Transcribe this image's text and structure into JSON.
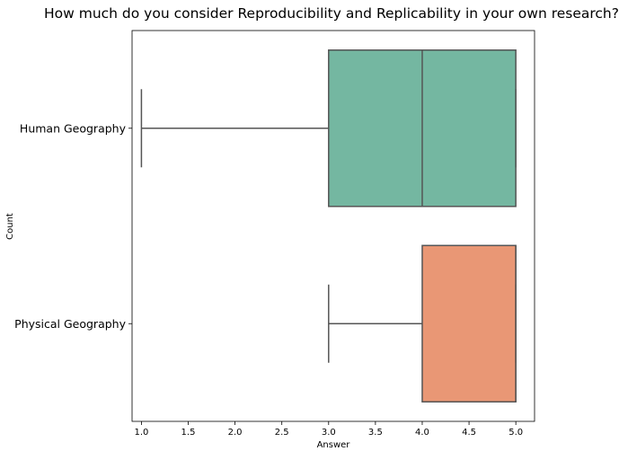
{
  "chart_data": {
    "type": "boxplot",
    "orientation": "horizontal",
    "title": "How much do you consider Reproducibility and Replicability in your own research?",
    "xlabel": "Answer",
    "ylabel": "Count",
    "xlim": [
      0.9,
      5.2
    ],
    "x_ticks": [
      "1.0",
      "1.5",
      "2.0",
      "2.5",
      "3.0",
      "3.5",
      "4.0",
      "4.5",
      "5.0"
    ],
    "grid": false,
    "categories": [
      "Human Geography",
      "Physical Geography"
    ],
    "series": [
      {
        "category": "Human Geography",
        "whisker_low": 1,
        "q1": 3,
        "median": 4,
        "q3": 5,
        "whisker_high": 5,
        "color": "#74b7a1"
      },
      {
        "category": "Physical Geography",
        "whisker_low": 3,
        "q1": 4,
        "median": 5,
        "q3": 5,
        "whisker_high": 5,
        "color": "#e99775"
      }
    ],
    "line_color": "#555555"
  }
}
